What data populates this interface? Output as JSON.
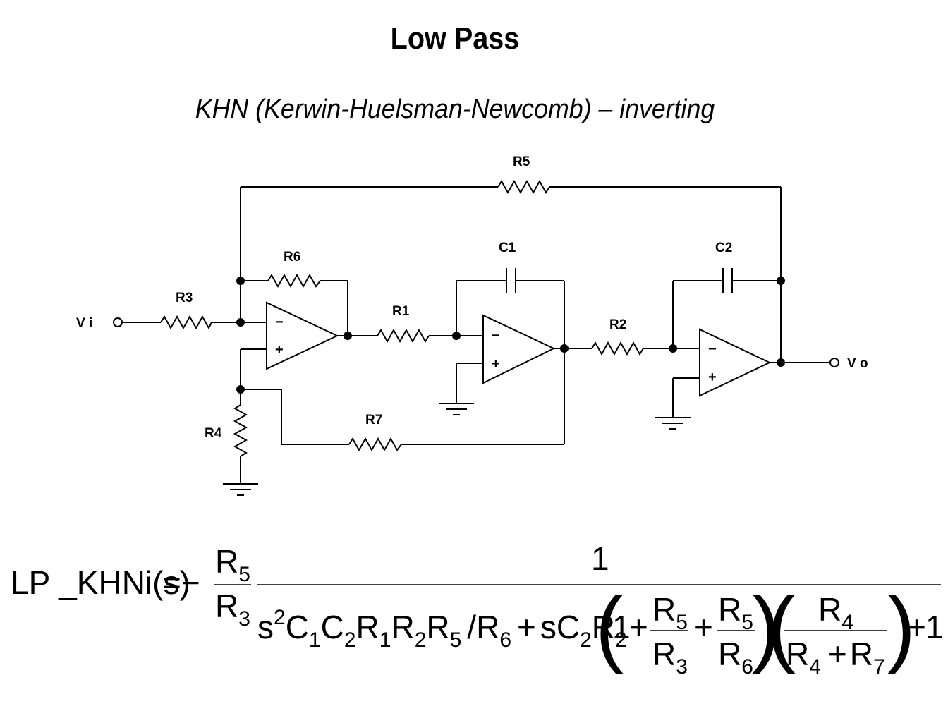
{
  "title": "Low Pass",
  "subtitle": "KHN (Kerwin-Huelsman-Newcomb) – inverting",
  "circuit": {
    "input_label": "V i",
    "output_label": "V o",
    "components": {
      "r1": "R1",
      "r2": "R2",
      "r3": "R3",
      "r4": "R4",
      "r5": "R5",
      "r6": "R6",
      "r7": "R7",
      "c1": "C1",
      "c2": "C2"
    },
    "minus": "−",
    "plus": "+"
  },
  "equation": {
    "lhs": "LP _KHNi(s)",
    "equals_minus": "=−",
    "r": "R",
    "s": "s",
    "c": "C",
    "one": "1",
    "plus": "+",
    "sq": "2",
    "slash": "/",
    "sub": {
      "1": "1",
      "2": "2",
      "3": "3",
      "4": "4",
      "5": "5",
      "6": "6",
      "7": "7"
    },
    "paren_open": "(",
    "paren_close": ")"
  }
}
